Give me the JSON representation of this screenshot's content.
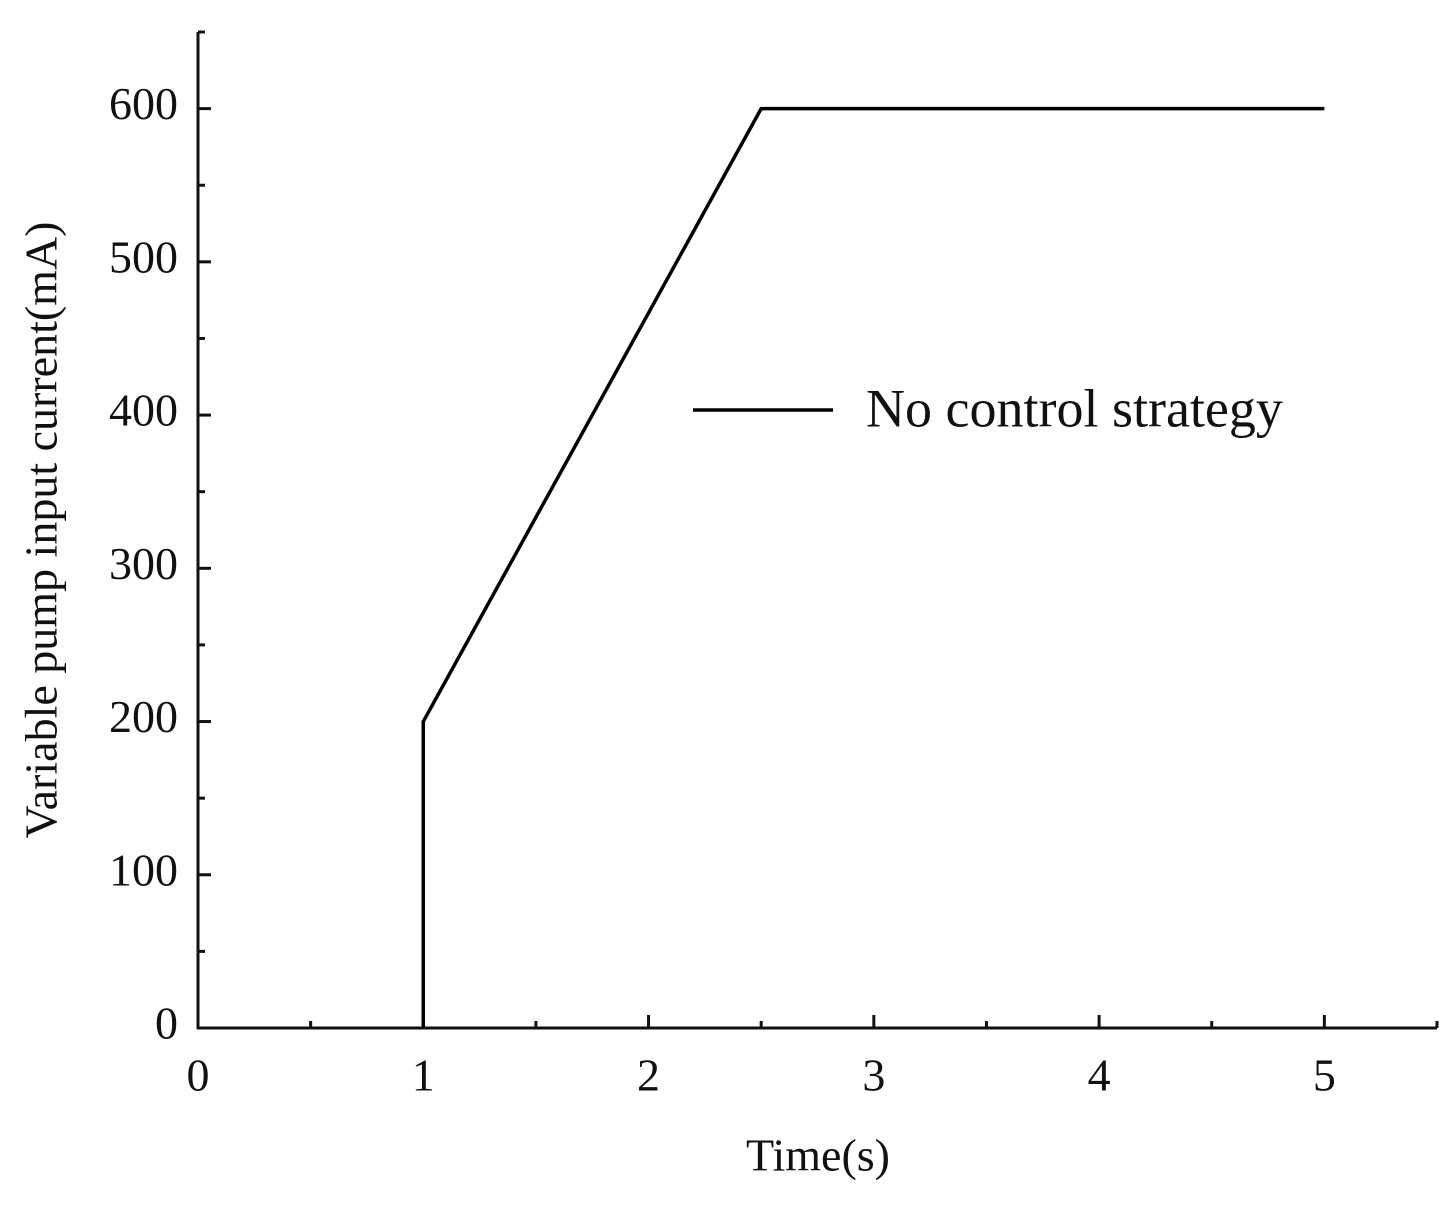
{
  "chart_data": {
    "type": "line",
    "xlabel": "Time(s)",
    "ylabel": "Variable pump input current(mA)",
    "series": [
      {
        "name": "No control strategy",
        "color": "#000000",
        "x": [
          1,
          1,
          2.5,
          5
        ],
        "values": [
          0,
          200,
          600,
          600
        ]
      }
    ],
    "xlim": [
      0,
      5.5
    ],
    "xticks": [
      0,
      1,
      2,
      3,
      4,
      5
    ],
    "xminorticks": [
      0.5,
      1.5,
      2.5,
      3.5,
      4.5,
      5.5
    ],
    "ylim": [
      0,
      650
    ],
    "yticks": [
      0,
      100,
      200,
      300,
      400,
      500,
      600
    ],
    "yminorticks": [
      50,
      150,
      250,
      350,
      450,
      550,
      650
    ],
    "grid": false,
    "legend": "right"
  }
}
